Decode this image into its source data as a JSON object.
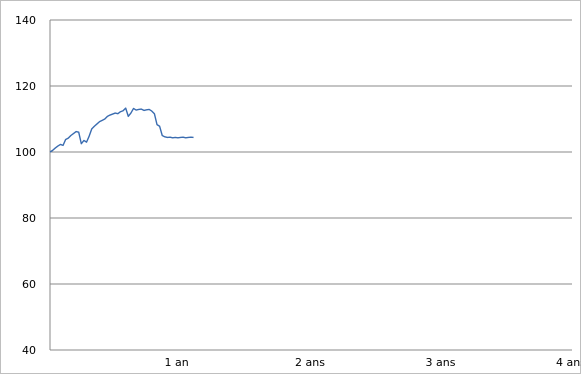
{
  "chart_data": {
    "type": "line",
    "title": "",
    "xlabel": "",
    "ylabel": "",
    "ylim": [
      40,
      140
    ],
    "xlim": [
      0,
      4
    ],
    "yticks": [
      40,
      60,
      80,
      100,
      120,
      140
    ],
    "xticks": [
      {
        "value": 1,
        "label": "1 an"
      },
      {
        "value": 2,
        "label": "2 ans"
      },
      {
        "value": 3,
        "label": "3 ans"
      },
      {
        "value": 4,
        "label": "4 ans"
      }
    ],
    "grid": {
      "horizontal": true,
      "vertical": false
    },
    "series": [
      {
        "color": "#3a6cb0",
        "x": [
          0.0,
          0.02,
          0.04,
          0.06,
          0.08,
          0.1,
          0.12,
          0.14,
          0.16,
          0.18,
          0.2,
          0.22,
          0.24,
          0.26,
          0.28,
          0.3,
          0.32,
          0.34,
          0.36,
          0.38,
          0.4,
          0.42,
          0.44,
          0.46,
          0.48,
          0.5,
          0.52,
          0.54,
          0.56,
          0.58,
          0.6,
          0.62,
          0.64,
          0.66,
          0.68,
          0.7,
          0.72,
          0.74,
          0.76,
          0.78,
          0.8,
          0.82,
          0.84,
          0.86,
          0.88,
          0.9,
          0.92,
          0.94,
          0.96,
          0.98,
          1.0,
          1.02,
          1.04,
          1.06,
          1.08,
          1.1
        ],
        "values": [
          100.0,
          100.5,
          101.2,
          101.8,
          102.3,
          102.0,
          103.8,
          104.2,
          105.0,
          105.6,
          106.2,
          106.0,
          102.5,
          103.5,
          103.0,
          104.8,
          107.0,
          107.8,
          108.5,
          109.2,
          109.6,
          110.0,
          110.8,
          111.2,
          111.5,
          111.8,
          111.6,
          112.2,
          112.5,
          113.3,
          110.8,
          111.8,
          113.2,
          112.7,
          112.9,
          113.0,
          112.6,
          112.8,
          112.9,
          112.4,
          111.6,
          108.3,
          107.8,
          105.0,
          104.6,
          104.4,
          104.5,
          104.3,
          104.4,
          104.3,
          104.4,
          104.5,
          104.3,
          104.4,
          104.5,
          104.4
        ]
      }
    ]
  }
}
